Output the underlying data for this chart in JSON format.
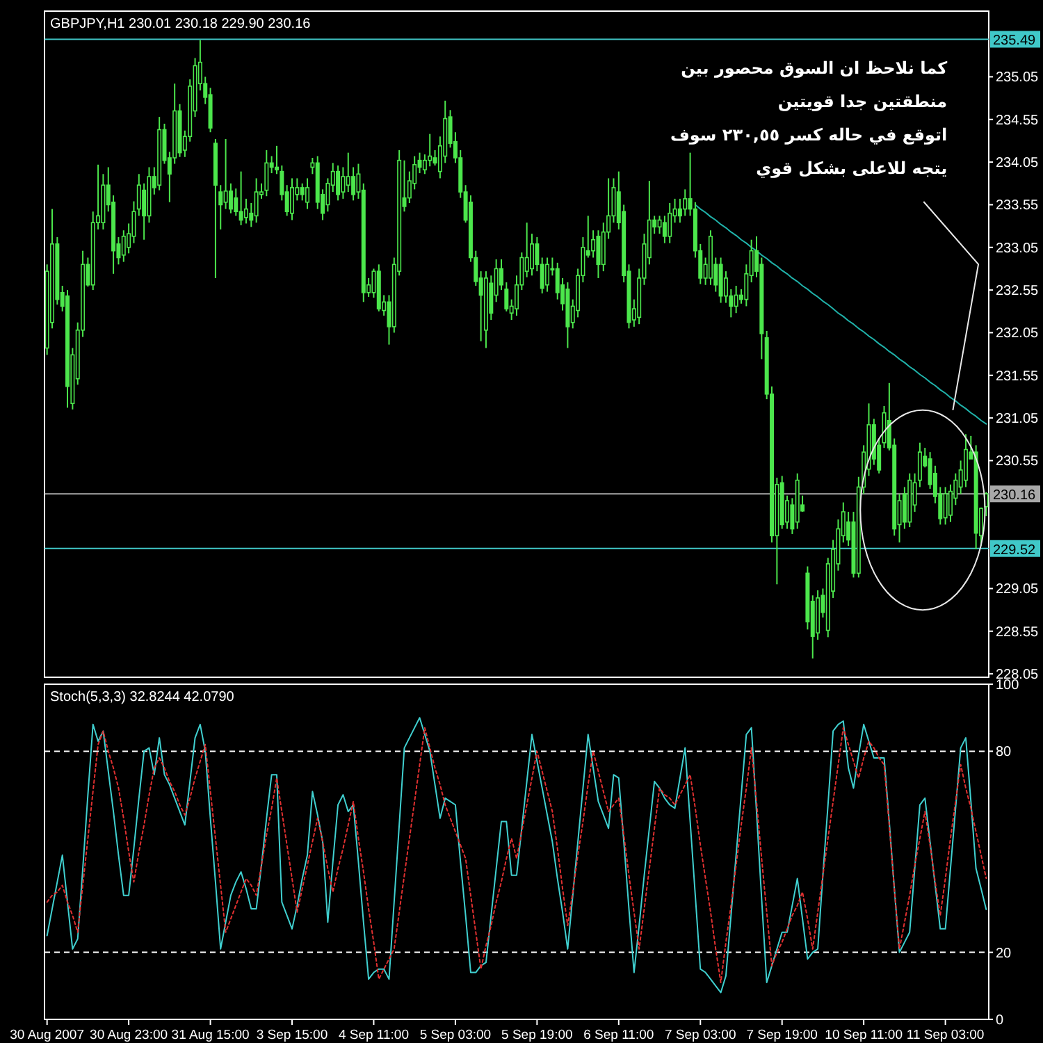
{
  "chart_data": [
    {
      "type": "candlestick",
      "title": "GBPJPY,H1  230.01 230.18 229.90 230.16",
      "color": "#4ce64c",
      "tick_labels": "y",
      "categories": [
        null,
        null,
        null,
        null,
        null,
        null,
        null,
        null,
        null,
        null,
        null,
        null,
        null,
        null,
        null,
        null,
        null,
        null,
        null,
        null,
        null,
        null,
        null,
        null,
        null,
        null,
        null,
        null,
        null,
        null,
        null,
        null,
        null,
        null,
        null,
        null,
        null,
        null,
        null,
        null,
        null,
        null,
        null,
        null,
        null,
        null,
        null,
        null,
        null,
        null,
        null,
        null,
        null,
        null,
        null,
        null,
        null,
        null,
        null,
        null,
        null,
        null,
        null,
        null,
        null,
        null,
        null,
        null,
        null,
        null,
        null,
        null,
        null,
        null,
        null,
        null,
        null,
        null,
        null,
        null,
        null,
        null,
        null,
        null,
        null,
        null,
        null,
        null,
        null,
        null,
        null,
        null,
        null,
        null,
        null,
        null,
        null,
        null,
        null,
        null,
        null,
        null,
        null,
        null,
        null,
        null,
        null,
        null,
        null,
        null,
        null,
        null,
        null,
        null,
        null,
        null,
        null,
        null,
        null,
        null,
        null,
        null,
        null,
        null,
        null,
        null,
        null,
        null,
        null,
        null,
        null,
        null,
        null,
        null,
        null,
        null,
        null,
        null,
        null,
        null,
        null,
        null,
        null,
        null,
        null,
        null,
        null,
        null,
        null,
        null,
        null,
        null,
        null,
        null,
        null,
        null,
        null,
        null,
        null,
        null,
        null,
        null,
        null,
        null,
        null,
        null,
        null,
        null,
        null,
        null,
        null,
        null,
        null,
        null,
        null,
        null,
        null,
        null,
        null,
        null,
        null,
        null,
        null,
        null,
        null
      ],
      "ylim": [
        228.01,
        235.82
      ],
      "yticks": [
        235.05,
        234.55,
        234.05,
        233.55,
        233.05,
        232.55,
        232.05,
        231.55,
        231.05,
        230.55,
        229.05,
        228.55,
        228.05
      ],
      "ohlc": [
        [
          231.87,
          232.85,
          231.79,
          232.77
        ],
        [
          232.17,
          233.5,
          232.1,
          233.09
        ],
        [
          233.09,
          233.17,
          232.38,
          232.44
        ],
        [
          232.52,
          232.6,
          232.3,
          232.36
        ],
        [
          232.48,
          232.55,
          231.17,
          231.42
        ],
        [
          231.22,
          231.87,
          231.15,
          231.79
        ],
        [
          231.51,
          232.17,
          231.44,
          232.08
        ],
        [
          232.08,
          233.01,
          232.0,
          232.85
        ],
        [
          232.85,
          232.93,
          232.59,
          232.61
        ],
        [
          232.61,
          233.47,
          232.55,
          233.34
        ],
        [
          233.34,
          234.02,
          233.26,
          233.42
        ],
        [
          233.34,
          233.91,
          233.26,
          233.78
        ],
        [
          233.78,
          233.99,
          233.47,
          233.55
        ],
        [
          233.58,
          233.66,
          232.74,
          233.01
        ],
        [
          233.09,
          233.17,
          232.85,
          232.93
        ],
        [
          232.96,
          233.25,
          232.88,
          233.18
        ],
        [
          233.05,
          233.33,
          232.98,
          233.21
        ],
        [
          233.18,
          233.59,
          233.1,
          233.47
        ],
        [
          233.5,
          233.91,
          233.42,
          233.78
        ],
        [
          233.72,
          233.8,
          233.14,
          233.42
        ],
        [
          233.42,
          233.99,
          233.34,
          233.88
        ],
        [
          233.88,
          233.99,
          233.67,
          233.75
        ],
        [
          233.78,
          234.58,
          233.72,
          234.43
        ],
        [
          234.43,
          234.5,
          234.03,
          234.07
        ],
        [
          234.1,
          234.17,
          233.58,
          233.91
        ],
        [
          234.1,
          234.97,
          234.03,
          234.65
        ],
        [
          234.65,
          234.73,
          234.11,
          234.16
        ],
        [
          234.19,
          234.42,
          234.11,
          234.35
        ],
        [
          234.35,
          235.02,
          234.29,
          234.94
        ],
        [
          234.65,
          235.27,
          234.58,
          235.18
        ],
        [
          234.97,
          235.48,
          234.89,
          235.22
        ],
        [
          234.97,
          235.05,
          234.73,
          234.81
        ],
        [
          234.84,
          234.92,
          234.4,
          234.45
        ],
        [
          234.27,
          234.32,
          232.69,
          233.78
        ],
        [
          233.7,
          233.78,
          233.26,
          233.55
        ],
        [
          233.58,
          234.32,
          233.5,
          233.71
        ],
        [
          233.71,
          233.8,
          233.45,
          233.5
        ],
        [
          233.63,
          233.74,
          233.42,
          233.47
        ],
        [
          233.47,
          233.94,
          233.31,
          233.37
        ],
        [
          233.4,
          233.62,
          233.33,
          233.5
        ],
        [
          233.45,
          233.57,
          233.29,
          233.37
        ],
        [
          233.42,
          233.86,
          233.34,
          233.7
        ],
        [
          233.67,
          233.8,
          233.62,
          233.7
        ],
        [
          233.72,
          234.19,
          233.65,
          234.04
        ],
        [
          234.04,
          234.12,
          233.92,
          233.99
        ],
        [
          233.99,
          234.24,
          233.91,
          233.96
        ],
        [
          233.94,
          234.01,
          233.6,
          233.67
        ],
        [
          233.7,
          233.78,
          233.42,
          233.47
        ],
        [
          233.45,
          233.86,
          233.37,
          233.75
        ],
        [
          233.67,
          233.86,
          233.6,
          233.75
        ],
        [
          233.75,
          233.8,
          233.6,
          233.67
        ],
        [
          233.58,
          233.86,
          233.5,
          233.75
        ],
        [
          233.99,
          234.1,
          233.91,
          234.04
        ],
        [
          234.04,
          234.12,
          233.5,
          233.58
        ],
        [
          233.67,
          233.73,
          233.37,
          233.45
        ],
        [
          233.55,
          233.86,
          233.47,
          233.8
        ],
        [
          233.78,
          234.04,
          233.7,
          233.94
        ],
        [
          233.94,
          234.01,
          233.6,
          233.67
        ],
        [
          233.7,
          233.99,
          233.62,
          233.88
        ],
        [
          233.78,
          234.16,
          233.7,
          233.88
        ],
        [
          233.88,
          233.99,
          233.6,
          233.67
        ],
        [
          233.7,
          234.03,
          233.62,
          233.91
        ],
        [
          233.72,
          233.8,
          232.41,
          232.52
        ],
        [
          232.52,
          232.69,
          232.47,
          232.61
        ],
        [
          232.52,
          232.8,
          232.46,
          232.77
        ],
        [
          232.77,
          232.85,
          232.3,
          232.33
        ],
        [
          232.31,
          232.49,
          232.25,
          232.41
        ],
        [
          232.41,
          232.49,
          231.91,
          232.12
        ],
        [
          232.12,
          232.93,
          232.05,
          232.85
        ],
        [
          232.77,
          234.19,
          232.72,
          234.07
        ],
        [
          233.63,
          234.07,
          233.47,
          233.53
        ],
        [
          233.63,
          233.94,
          233.57,
          233.83
        ],
        [
          233.8,
          234.12,
          233.73,
          234.02
        ],
        [
          234.07,
          234.16,
          233.92,
          233.99
        ],
        [
          233.96,
          234.14,
          233.91,
          234.07
        ],
        [
          234.07,
          234.38,
          234.0,
          234.12
        ],
        [
          234.1,
          234.19,
          234.01,
          234.04
        ],
        [
          233.94,
          234.35,
          233.86,
          234.24
        ],
        [
          234.12,
          234.77,
          234.04,
          234.56
        ],
        [
          234.58,
          234.66,
          234.22,
          234.27
        ],
        [
          234.29,
          234.4,
          234.04,
          234.1
        ],
        [
          234.1,
          234.19,
          233.63,
          233.7
        ],
        [
          233.7,
          233.78,
          233.34,
          233.37
        ],
        [
          233.58,
          233.66,
          232.88,
          232.93
        ],
        [
          232.93,
          233.01,
          232.6,
          232.65
        ],
        [
          232.69,
          232.77,
          231.95,
          232.49
        ],
        [
          232.08,
          232.77,
          231.87,
          232.69
        ],
        [
          232.63,
          232.72,
          232.2,
          232.28
        ],
        [
          232.49,
          232.91,
          232.41,
          232.8
        ],
        [
          232.8,
          232.91,
          232.55,
          232.61
        ],
        [
          232.56,
          232.64,
          232.3,
          232.33
        ],
        [
          232.28,
          232.44,
          232.2,
          232.36
        ],
        [
          232.33,
          232.72,
          232.25,
          232.61
        ],
        [
          232.61,
          232.99,
          232.55,
          232.93
        ],
        [
          232.77,
          233.34,
          232.7,
          232.93
        ],
        [
          232.8,
          233.21,
          232.72,
          233.09
        ],
        [
          233.09,
          233.17,
          232.77,
          232.85
        ],
        [
          232.85,
          232.93,
          232.51,
          232.57
        ],
        [
          232.61,
          232.93,
          232.53,
          232.85
        ],
        [
          232.8,
          232.93,
          232.72,
          232.8
        ],
        [
          232.8,
          232.87,
          232.44,
          232.52
        ],
        [
          232.61,
          232.69,
          232.31,
          232.39
        ],
        [
          232.56,
          232.64,
          231.87,
          232.12
        ],
        [
          232.17,
          232.44,
          232.1,
          232.36
        ],
        [
          232.31,
          232.8,
          232.23,
          232.72
        ],
        [
          232.72,
          233.17,
          232.64,
          233.05
        ],
        [
          233.01,
          233.42,
          232.93,
          232.96
        ],
        [
          233.01,
          233.25,
          232.93,
          233.14
        ],
        [
          233.18,
          233.25,
          232.69,
          232.85
        ],
        [
          232.85,
          233.34,
          232.77,
          233.23
        ],
        [
          233.23,
          233.86,
          233.15,
          233.42
        ],
        [
          233.42,
          233.86,
          233.34,
          233.75
        ],
        [
          233.7,
          233.94,
          233.26,
          233.34
        ],
        [
          233.47,
          233.55,
          232.64,
          232.72
        ],
        [
          232.77,
          232.85,
          232.1,
          232.17
        ],
        [
          232.2,
          232.44,
          232.12,
          232.33
        ],
        [
          232.23,
          232.8,
          232.15,
          232.69
        ],
        [
          232.69,
          233.21,
          232.61,
          233.09
        ],
        [
          232.93,
          233.83,
          232.85,
          233.37
        ],
        [
          233.37,
          233.42,
          233.21,
          233.29
        ],
        [
          233.29,
          233.42,
          233.21,
          233.37
        ],
        [
          233.34,
          233.42,
          233.1,
          233.18
        ],
        [
          233.18,
          233.57,
          233.1,
          233.45
        ],
        [
          233.42,
          233.62,
          233.34,
          233.5
        ],
        [
          233.5,
          233.62,
          233.34,
          233.42
        ],
        [
          233.5,
          233.73,
          233.42,
          233.62
        ],
        [
          233.62,
          234.16,
          233.42,
          233.5
        ],
        [
          233.5,
          233.58,
          232.93,
          233.01
        ],
        [
          233.01,
          233.09,
          232.62,
          232.69
        ],
        [
          232.69,
          232.93,
          232.61,
          232.85
        ],
        [
          232.69,
          233.25,
          232.61,
          233.18
        ],
        [
          232.85,
          232.93,
          232.53,
          232.61
        ],
        [
          232.85,
          232.93,
          232.4,
          232.48
        ],
        [
          232.48,
          232.77,
          232.4,
          232.69
        ],
        [
          232.48,
          232.56,
          232.23,
          232.36
        ],
        [
          232.36,
          232.6,
          232.28,
          232.49
        ],
        [
          232.49,
          232.56,
          232.39,
          232.44
        ],
        [
          232.44,
          232.85,
          232.36,
          232.74
        ],
        [
          232.72,
          233.14,
          232.64,
          233.01
        ],
        [
          233.01,
          233.18,
          232.7,
          232.77
        ],
        [
          232.85,
          232.93,
          231.74,
          232.04
        ],
        [
          231.99,
          232.07,
          231.27,
          231.33
        ],
        [
          231.33,
          231.42,
          229.59,
          229.67
        ],
        [
          229.67,
          230.35,
          229.1,
          230.27
        ],
        [
          230.29,
          230.37,
          229.75,
          229.8
        ],
        [
          229.83,
          230.14,
          229.75,
          230.08
        ],
        [
          230.03,
          230.11,
          229.69,
          229.75
        ],
        [
          229.83,
          230.4,
          229.75,
          230.32
        ],
        [
          230.03,
          230.14,
          229.95,
          229.96
        ],
        [
          229.23,
          229.31,
          228.57,
          228.66
        ],
        [
          228.9,
          228.97,
          228.23,
          228.49
        ],
        [
          228.53,
          229.03,
          228.45,
          228.94
        ],
        [
          228.97,
          229.05,
          228.71,
          228.77
        ],
        [
          228.56,
          229.41,
          228.48,
          229.34
        ],
        [
          229.02,
          229.62,
          228.94,
          229.51
        ],
        [
          229.34,
          229.86,
          229.26,
          229.75
        ],
        [
          229.67,
          230.06,
          229.59,
          229.95
        ],
        [
          229.83,
          229.95,
          229.55,
          229.62
        ],
        [
          229.83,
          229.95,
          229.18,
          229.23
        ],
        [
          229.23,
          230.36,
          229.18,
          230.24
        ],
        [
          230.24,
          230.73,
          230.16,
          230.65
        ],
        [
          230.45,
          231.22,
          230.37,
          230.97
        ],
        [
          230.97,
          231.04,
          230.5,
          230.57
        ],
        [
          230.73,
          230.81,
          230.4,
          230.44
        ],
        [
          230.76,
          231.19,
          230.7,
          231.11
        ],
        [
          231.02,
          231.46,
          230.67,
          230.7
        ],
        [
          230.73,
          230.81,
          229.67,
          229.75
        ],
        [
          229.8,
          230.16,
          229.59,
          230.08
        ],
        [
          230.16,
          230.24,
          229.75,
          229.83
        ],
        [
          229.83,
          230.4,
          229.77,
          230.32
        ],
        [
          230.03,
          230.4,
          229.95,
          230.29
        ],
        [
          230.32,
          230.76,
          230.24,
          230.65
        ],
        [
          230.6,
          230.7,
          230.47,
          230.49
        ],
        [
          230.57,
          230.65,
          230.22,
          230.27
        ],
        [
          230.4,
          230.49,
          230.05,
          230.13
        ],
        [
          230.16,
          230.24,
          229.8,
          229.87
        ],
        [
          229.88,
          230.24,
          229.8,
          230.16
        ],
        [
          229.91,
          230.27,
          229.83,
          230.19
        ],
        [
          230.11,
          230.4,
          230.03,
          230.32
        ],
        [
          230.24,
          230.55,
          230.16,
          230.44
        ],
        [
          230.32,
          230.86,
          230.24,
          230.68
        ],
        [
          230.65,
          230.84,
          230.57,
          230.57
        ],
        [
          230.65,
          230.73,
          229.51,
          229.7
        ],
        [
          229.67,
          230.0,
          229.55,
          229.99
        ],
        [
          230.01,
          230.18,
          229.9,
          230.16
        ]
      ],
      "series": [
        {
          "type": "line",
          "color": "#20b2aa",
          "values": [
            null,
            null,
            null,
            null,
            null,
            null,
            null,
            null,
            null,
            null,
            null,
            null,
            null,
            null,
            null,
            null,
            null,
            null,
            null,
            null,
            null,
            null,
            null,
            null,
            null,
            null,
            null,
            null,
            null,
            null,
            null,
            null,
            null,
            null,
            null,
            null,
            null,
            null,
            null,
            null,
            null,
            null,
            null,
            null,
            null,
            null,
            null,
            null,
            null,
            null,
            null,
            null,
            null,
            null,
            null,
            null,
            null,
            null,
            null,
            null,
            null,
            null,
            null,
            null,
            null,
            null,
            null,
            null,
            null,
            null,
            null,
            null,
            null,
            null,
            null,
            null,
            null,
            null,
            null,
            null,
            null,
            null,
            null,
            null,
            null,
            null,
            null,
            null,
            null,
            null,
            null,
            null,
            null,
            null,
            null,
            null,
            null,
            null,
            null,
            null,
            null,
            null,
            null,
            null,
            null,
            null,
            null,
            null,
            null,
            null,
            null,
            null,
            null,
            null,
            null,
            null,
            null,
            null,
            null,
            null,
            null,
            null,
            null,
            null,
            null,
            null,
            null,
            233.55,
            233.5,
            233.46,
            233.41,
            233.37,
            233.32,
            233.28,
            233.23,
            233.19,
            233.14,
            233.1,
            233.05,
            233.01,
            232.96,
            232.92,
            232.87,
            232.83,
            232.78,
            232.74,
            232.69,
            232.65,
            232.6,
            232.56,
            232.51,
            232.47,
            232.42,
            232.38,
            232.33,
            232.28,
            232.24,
            232.19,
            232.15,
            232.1,
            232.06,
            232.01,
            231.97,
            231.92,
            231.88,
            231.83,
            231.79,
            231.74,
            231.7,
            231.65,
            231.61,
            231.56,
            231.52,
            231.47,
            231.43,
            231.38,
            231.34,
            231.29,
            231.25,
            231.2,
            231.16,
            231.11,
            231.07,
            231.02,
            230.98
          ]
        }
      ],
      "ref_lines": [
        {
          "axis": "y",
          "value": 235.49,
          "label": "235.49",
          "color": "#40c8c8"
        },
        {
          "axis": "y",
          "value": 230.16,
          "label": "230.16",
          "color": "#a8a8a8"
        },
        {
          "axis": "y",
          "value": 229.52,
          "label": "229.52",
          "color": "#40c8c8"
        }
      ],
      "annotations": [
        "كما نلاحظ ان السوق محصور بين",
        "منطقتين جدا قويتين",
        "اتوقع في حاله كسر ٢٣٠,٥٥ سوف",
        "يتجه للاعلى بشكل قوي"
      ]
    },
    {
      "type": "line",
      "title": "Stoch(5,3,3) 32.8244 42.0790",
      "ylim": [
        0,
        100
      ],
      "yticks": [
        0,
        20,
        80,
        100
      ],
      "categories": [
        "30 Aug 2007",
        null,
        null,
        null,
        null,
        null,
        null,
        null,
        null,
        null,
        null,
        null,
        null,
        null,
        null,
        null,
        "30 Aug 23:00",
        null,
        null,
        null,
        null,
        null,
        null,
        null,
        null,
        null,
        null,
        null,
        null,
        null,
        null,
        null,
        "31 Aug 15:00",
        null,
        null,
        null,
        null,
        null,
        null,
        null,
        null,
        null,
        null,
        null,
        null,
        null,
        null,
        null,
        "3 Sep 15:00",
        null,
        null,
        null,
        null,
        null,
        null,
        null,
        null,
        null,
        null,
        null,
        null,
        null,
        null,
        null,
        "4 Sep 11:00",
        null,
        null,
        null,
        null,
        null,
        null,
        null,
        null,
        null,
        null,
        null,
        null,
        null,
        null,
        null,
        "5 Sep 03:00",
        null,
        null,
        null,
        null,
        null,
        null,
        null,
        null,
        null,
        null,
        null,
        null,
        null,
        null,
        null,
        "5 Sep 19:00",
        null,
        null,
        null,
        null,
        null,
        null,
        null,
        null,
        null,
        null,
        null,
        null,
        null,
        null,
        null,
        "6 Sep 11:00",
        null,
        null,
        null,
        null,
        null,
        null,
        null,
        null,
        null,
        null,
        null,
        null,
        null,
        null,
        null,
        "7 Sep 03:00",
        null,
        null,
        null,
        null,
        null,
        null,
        null,
        null,
        null,
        null,
        null,
        null,
        null,
        null,
        null,
        "7 Sep 19:00",
        null,
        null,
        null,
        null,
        null,
        null,
        null,
        null,
        null,
        null,
        null,
        null,
        null,
        null,
        null,
        "10 Sep 11:00",
        null,
        null,
        null,
        null,
        null,
        null,
        null,
        null,
        null,
        null,
        null,
        null,
        null,
        null,
        null,
        "11 Sep 03:00",
        null,
        null,
        null,
        null,
        null,
        null,
        null,
        null
      ],
      "series": [
        {
          "color": "#40d0d0",
          "line_style": "solid",
          "values": [
            25,
            33,
            41,
            49,
            35,
            21,
            24,
            45,
            67,
            88,
            83,
            86,
            74,
            62,
            49,
            37,
            37,
            51,
            66,
            80,
            81,
            73,
            84,
            73,
            70,
            66,
            62,
            58,
            71,
            84,
            88,
            80,
            60,
            41,
            21,
            29,
            37,
            41,
            44,
            39,
            33,
            33,
            46,
            60,
            73,
            73,
            35,
            31,
            27,
            34,
            42,
            49,
            68,
            61,
            53,
            29,
            47,
            64,
            67,
            62,
            64,
            47,
            29,
            12,
            14,
            15,
            15,
            12,
            35,
            58,
            81,
            84,
            87,
            90,
            85,
            80,
            70,
            60,
            66,
            65,
            64,
            47,
            31,
            14,
            14,
            16,
            17,
            31,
            45,
            59,
            59,
            43,
            43,
            57,
            71,
            85,
            77,
            69,
            61,
            53,
            42,
            32,
            21,
            37,
            53,
            69,
            85,
            75,
            65,
            61,
            57,
            73,
            72,
            53,
            33,
            14,
            28,
            43,
            57,
            71,
            69,
            66,
            64,
            63,
            72,
            81,
            59,
            37,
            15,
            14,
            12,
            10,
            8,
            13,
            31,
            49,
            67,
            85,
            87,
            62,
            36,
            11,
            16,
            21,
            26,
            26,
            34,
            42,
            30,
            18,
            20,
            21,
            43,
            64,
            86,
            88,
            89,
            75,
            69,
            79,
            88,
            83,
            78,
            78,
            78,
            59,
            39,
            20,
            23,
            26,
            45,
            64,
            66,
            53,
            40,
            27,
            27,
            45,
            63,
            81,
            84,
            65,
            45,
            39,
            32.8
          ]
        },
        {
          "color": "#e03030",
          "line_style": "dotted",
          "values": [
            35,
            37,
            38,
            40,
            35,
            31,
            26,
            40,
            54,
            68,
            82,
            86,
            80,
            75,
            69,
            60,
            50,
            41,
            50,
            58,
            67,
            75,
            78,
            75,
            71,
            68,
            64,
            61,
            66,
            72,
            77,
            82,
            68,
            54,
            40,
            26,
            30,
            34,
            38,
            42,
            40,
            37,
            46,
            55,
            63,
            72,
            62,
            52,
            42,
            32,
            39,
            46,
            53,
            60,
            53,
            45,
            38,
            45,
            51,
            58,
            65,
            54,
            44,
            33,
            23,
            12,
            15,
            18,
            21,
            32,
            43,
            54,
            65,
            76,
            87,
            81,
            75,
            70,
            64,
            60,
            56,
            52,
            48,
            37,
            26,
            15,
            22,
            28,
            35,
            41,
            48,
            54,
            48,
            56,
            64,
            72,
            80,
            74,
            68,
            62,
            51,
            39,
            28,
            38,
            49,
            59,
            70,
            80,
            74,
            68,
            62,
            64,
            66,
            55,
            43,
            32,
            21,
            33,
            45,
            57,
            69,
            67,
            66,
            64,
            67,
            70,
            73,
            63,
            52,
            42,
            32,
            21,
            11,
            23,
            34,
            46,
            58,
            69,
            81,
            65,
            48,
            32,
            16,
            20,
            23,
            27,
            31,
            34,
            38,
            30,
            21,
            32,
            43,
            54,
            65,
            76,
            87,
            82,
            77,
            72,
            78,
            83,
            81,
            78,
            76,
            58,
            39,
            21,
            29,
            37,
            46,
            54,
            62,
            52,
            41,
            31,
            42,
            54,
            65,
            76,
            69,
            63,
            56,
            49,
            42.1
          ]
        }
      ],
      "ref_lines": [
        {
          "axis": "y",
          "value": 80,
          "color": "#ffffff",
          "line_style": "dashed"
        },
        {
          "axis": "y",
          "value": 20,
          "color": "#ffffff",
          "line_style": "dashed"
        }
      ]
    }
  ]
}
